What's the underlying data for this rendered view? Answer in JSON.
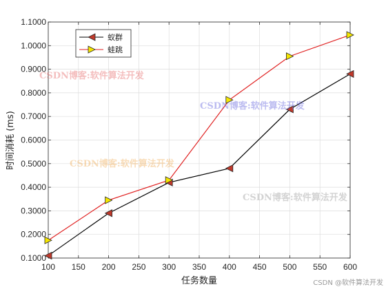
{
  "chart_data": {
    "type": "line",
    "xlabel": "任务数量",
    "ylabel": "时间消耗 (ms)",
    "x": [
      100,
      200,
      300,
      400,
      500,
      600
    ],
    "xlim": [
      100,
      600
    ],
    "ylim": [
      0.1,
      1.1
    ],
    "xticks": [
      100,
      150,
      200,
      250,
      300,
      350,
      400,
      450,
      500,
      550,
      600
    ],
    "yticks": [
      0.1,
      0.2,
      0.3,
      0.4,
      0.5,
      0.6,
      0.7,
      0.8,
      0.9,
      1.0,
      1.1
    ],
    "ytick_labels": [
      "0.1000",
      "0.2000",
      "0.3000",
      "0.4000",
      "0.5000",
      "0.6000",
      "0.7000",
      "0.8000",
      "0.9000",
      "1.0000",
      "1.1000"
    ],
    "grid": true,
    "legend_position": "top-left",
    "series": [
      {
        "name": "蚁群",
        "values": [
          0.11,
          0.29,
          0.42,
          0.48,
          0.73,
          0.88
        ],
        "line_color": "#000000",
        "marker": "triangle-left",
        "marker_color": "#c0392b"
      },
      {
        "name": "蛙跳",
        "values": [
          0.175,
          0.345,
          0.43,
          0.77,
          0.955,
          1.045
        ],
        "line_color": "#e02020",
        "marker": "triangle-right",
        "marker_color": "#f5e600"
      }
    ]
  },
  "watermarks": [
    {
      "text": "CSDN博客:软件算法开发",
      "color": "#e87070"
    },
    {
      "text": "CSDN博客:软件算法开发",
      "color": "#6a6ae0"
    },
    {
      "text": "CSDN博客:软件算法开发",
      "color": "#f0b060"
    },
    {
      "text": "CSDN博客:软件算法开发",
      "color": "#a0a0a0"
    }
  ],
  "footer": "CSDN @软件算法开发"
}
